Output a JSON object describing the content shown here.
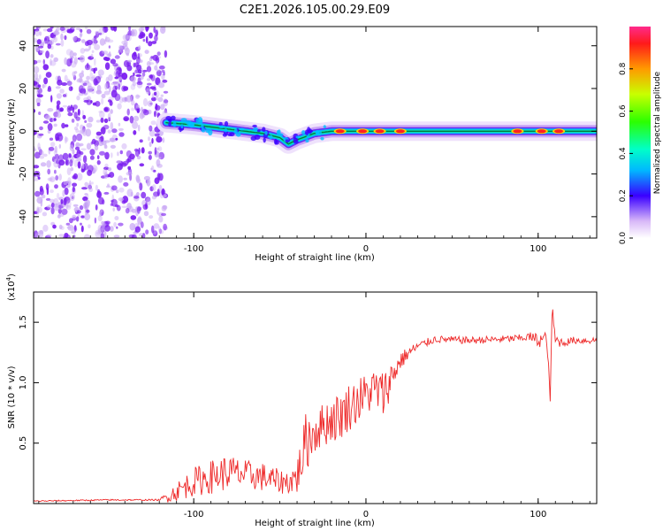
{
  "page_title": "C2E1.2026.105.00.29.E09",
  "colors": {
    "trace": "#ee2a2a",
    "scatter": "#7a1cf0",
    "scatter_light": "#c9a8f5",
    "axis": "#000000"
  },
  "chart_data": [
    {
      "type": "heatmap",
      "title": "C2E1.2026.105.00.29.E09",
      "xlabel": "Height of straight line (km)",
      "ylabel": "Frequency (Hz)",
      "xlim": [
        -193,
        134
      ],
      "ylim": [
        -50,
        49
      ],
      "xticks": [
        -100,
        0,
        100
      ],
      "xtick_labels": [
        "-100",
        "0",
        "100"
      ],
      "yticks": [
        -40,
        -20,
        0,
        20,
        40
      ],
      "ytick_labels": [
        "-40",
        "-20",
        "0",
        "20",
        "40"
      ],
      "noise_region_x": [
        -193,
        -116
      ],
      "ridge_center_hz": {
        "x": [
          -116,
          -100,
          -80,
          -60,
          -50,
          -45,
          -40,
          -30,
          -20,
          -10,
          0,
          20,
          40,
          60,
          80,
          100,
          134
        ],
        "y": [
          4,
          3,
          1,
          -1,
          -3,
          -6,
          -4,
          -1,
          0,
          0,
          0,
          0,
          0,
          0,
          0,
          0,
          0
        ]
      },
      "hot_spots_x": [
        -15,
        -2,
        8,
        20,
        88,
        102,
        112
      ],
      "colorbar": {
        "label": "Normalized spectral amplitude",
        "ticks": [
          0.0,
          0.2,
          0.4,
          0.6,
          0.8
        ],
        "tick_labels": [
          "0.0",
          "0.2",
          "0.4",
          "0.6",
          "0.8"
        ],
        "range": [
          0,
          1
        ]
      }
    },
    {
      "type": "line",
      "xlabel": "Height of straight line (km)",
      "ylabel": "SNR (10 * v/v)",
      "y_scale_label": "(x10",
      "y_scale_exp": "4",
      "y_scale_close": ")",
      "xlim": [
        -193,
        134
      ],
      "ylim": [
        0.0,
        1.75
      ],
      "xticks": [
        -100,
        0,
        100
      ],
      "xtick_labels": [
        "-100",
        "0",
        "100"
      ],
      "yticks": [
        0.5,
        1.0,
        1.5
      ],
      "ytick_labels": [
        "0.5",
        "1.0",
        "1.5"
      ],
      "series": [
        {
          "name": "SNR",
          "x": [
            -193,
            -150,
            -120,
            -115,
            -110,
            -100,
            -90,
            -80,
            -70,
            -60,
            -50,
            -45,
            -40,
            -35,
            -30,
            -25,
            -20,
            -15,
            -10,
            -5,
            0,
            5,
            10,
            15,
            20,
            25,
            30,
            40,
            60,
            80,
            90,
            95,
            100,
            105,
            107,
            108,
            110,
            115,
            120,
            134
          ],
          "y": [
            0.02,
            0.03,
            0.03,
            0.06,
            0.1,
            0.18,
            0.22,
            0.26,
            0.24,
            0.22,
            0.18,
            0.18,
            0.22,
            0.5,
            0.6,
            0.65,
            0.7,
            0.72,
            0.8,
            0.85,
            0.9,
            0.95,
            0.9,
            1.05,
            1.18,
            1.25,
            1.3,
            1.36,
            1.35,
            1.36,
            1.37,
            1.38,
            1.35,
            1.37,
            0.85,
            1.6,
            1.35,
            1.33,
            1.35,
            1.35
          ],
          "noise_amp": [
            0.005,
            0.006,
            0.006,
            0.05,
            0.08,
            0.12,
            0.14,
            0.15,
            0.12,
            0.12,
            0.1,
            0.1,
            0.15,
            0.25,
            0.2,
            0.18,
            0.2,
            0.2,
            0.2,
            0.2,
            0.18,
            0.18,
            0.2,
            0.14,
            0.08,
            0.05,
            0.04,
            0.03,
            0.03,
            0.03,
            0.03,
            0.04,
            0.06,
            0.06,
            0.05,
            0.08,
            0.06,
            0.03,
            0.03,
            0.03
          ]
        }
      ]
    }
  ]
}
